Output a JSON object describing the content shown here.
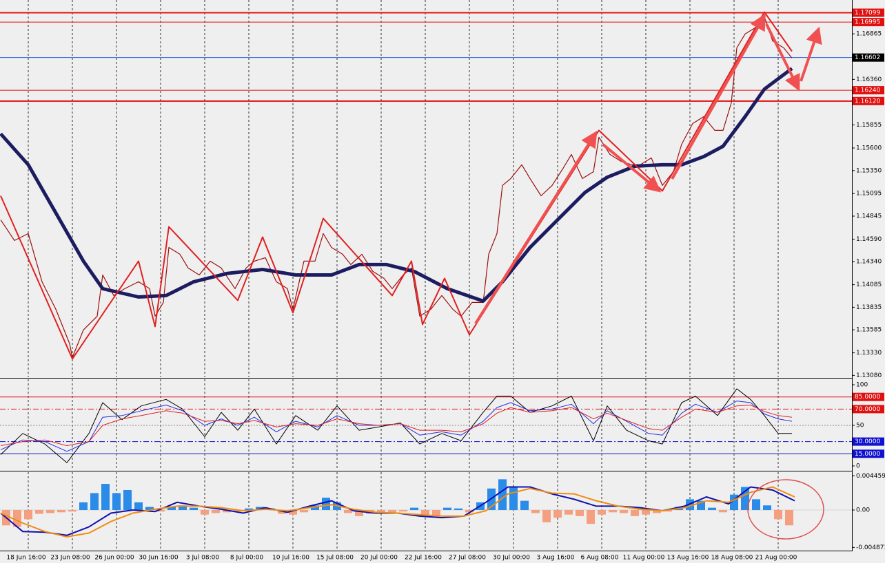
{
  "chart_data": [
    {
      "type": "line",
      "xlim": [
        -10.25,
        298.75
      ],
      "ylim": [
        1.1306,
        1.1724
      ],
      "grid": true,
      "yticks": [
        1.16865,
        {
          "value": 1.1636,
          "label": "1.16360"
        },
        1.15855,
        {
          "value": 1.156,
          "label": "1.15600"
        },
        {
          "value": 1.1535,
          "label": "1.15350"
        },
        1.15095,
        1.14845,
        {
          "value": 1.1459,
          "label": "1.14590"
        },
        {
          "value": 1.1434,
          "label": "1.14340"
        },
        1.14085,
        1.13835,
        1.13585,
        {
          "value": 1.1333,
          "label": "1.13330"
        },
        {
          "value": 1.1308,
          "label": "1.13080"
        }
      ],
      "levels": [
        {
          "value": 1.17099,
          "label": "1.17099",
          "color": "#e01010",
          "width": 2,
          "box": "#e01010"
        },
        {
          "value": 1.16995,
          "label": "1.16995",
          "color": "#e01010",
          "width": 1,
          "box": "#e01010"
        },
        {
          "value": 1.16602,
          "label": "1.16602",
          "color": "#3060e0",
          "width": 1,
          "box": "#000000"
        },
        {
          "value": 1.1624,
          "label": "1.16240",
          "color": "#e01010",
          "width": 1,
          "box": "#e01010"
        },
        {
          "value": 1.1612,
          "label": "1.16120",
          "color": "#e01010",
          "width": 2,
          "box": "#e01010"
        }
      ],
      "series": [
        {
          "color": "#9a1010",
          "width": 1.2,
          "x": [
            -10,
            -5,
            0,
            5,
            10,
            15,
            16,
            20,
            25,
            27,
            31,
            35,
            40,
            44,
            46,
            49,
            51,
            55,
            58,
            62,
            66,
            70,
            75,
            79,
            82,
            86,
            90,
            94,
            96,
            100,
            104,
            107,
            110,
            114,
            117,
            121,
            125,
            129,
            132,
            136,
            139,
            142,
            146,
            150,
            154,
            157,
            161,
            165,
            167,
            170,
            172,
            175,
            179,
            182,
            186,
            190,
            194,
            197,
            201,
            205,
            207,
            211,
            215,
            219,
            222,
            226,
            230,
            234,
            237,
            241,
            245,
            249,
            252,
            255,
            257,
            260,
            264,
            267,
            270,
            274,
            277
          ],
          "values": [
            1.14804,
            1.14575,
            1.14651,
            1.14117,
            1.13812,
            1.13431,
            1.13278,
            1.13583,
            1.13736,
            1.14193,
            1.13965,
            1.14041,
            1.14117,
            1.14041,
            1.13736,
            1.13888,
            1.14498,
            1.14422,
            1.1427,
            1.14193,
            1.14346,
            1.1427,
            1.14041,
            1.1427,
            1.14346,
            1.14384,
            1.14117,
            1.14041,
            1.13812,
            1.14346,
            1.14346,
            1.14651,
            1.14498,
            1.14422,
            1.14308,
            1.14422,
            1.14232,
            1.14155,
            1.14041,
            1.14193,
            1.1427,
            1.13736,
            1.13812,
            1.13965,
            1.13812,
            1.13736,
            1.13888,
            1.13888,
            1.14422,
            1.14651,
            1.15185,
            1.15261,
            1.15414,
            1.15261,
            1.1507,
            1.15185,
            1.15375,
            1.15528,
            1.15261,
            1.15337,
            1.15719,
            1.15528,
            1.15452,
            1.15414,
            1.15414,
            1.1549,
            1.15185,
            1.15337,
            1.15642,
            1.15871,
            1.15947,
            1.15795,
            1.15795,
            1.161,
            1.1671,
            1.16863,
            1.16939,
            1.17053,
            1.16786,
            1.1671,
            1.16596
          ]
        },
        {
          "color": "#1c1c60",
          "width": 5,
          "x": [
            -10,
            0,
            10,
            20,
            27,
            40,
            50,
            60,
            72,
            85,
            97,
            110,
            120,
            130,
            140,
            152,
            165,
            172,
            182,
            192,
            202,
            210,
            220,
            230,
            237,
            245,
            252,
            260,
            267,
            277
          ],
          "values": [
            1.15757,
            1.15414,
            1.1488,
            1.14346,
            1.14041,
            1.13949,
            1.13965,
            1.14117,
            1.14209,
            1.14254,
            1.14193,
            1.14193,
            1.14308,
            1.14308,
            1.14232,
            1.14041,
            1.13904,
            1.14117,
            1.14498,
            1.14804,
            1.15109,
            1.15276,
            1.15398,
            1.15414,
            1.15414,
            1.15505,
            1.15619,
            1.15947,
            1.16252,
            1.16481
          ]
        },
        {
          "color": "#e02020",
          "width": 2,
          "x": [
            -10,
            16,
            40,
            46,
            51,
            76,
            85,
            96,
            107,
            132,
            139,
            143,
            151,
            160,
            207,
            230,
            267,
            277
          ],
          "values": [
            1.1507,
            1.13263,
            1.14346,
            1.13621,
            1.14727,
            1.13911,
            1.14613,
            1.13774,
            1.14819,
            1.13965,
            1.14346,
            1.13644,
            1.14155,
            1.1353,
            1.15795,
            1.15124,
            1.17106,
            1.16672
          ]
        }
      ]
    },
    {
      "type": "line",
      "xlim": [
        -10.25,
        298.75
      ],
      "ylim": [
        -5.1,
        106.8
      ],
      "yticks": [
        0,
        50,
        100
      ],
      "levels": [
        {
          "value": 85,
          "label": "85.0000",
          "color": "#e01010",
          "dash": false
        },
        {
          "value": 70,
          "label": "70.0000",
          "color": "#e01010",
          "dash": true
        },
        {
          "value": 30,
          "label": "30.0000",
          "color": "#1010d0",
          "dash": true
        },
        {
          "value": 15,
          "label": "15.0000",
          "color": "#1010d0",
          "dash": false
        }
      ],
      "x": [
        -10,
        -2,
        6,
        14,
        22,
        27,
        34,
        41,
        50,
        56,
        64,
        70,
        76,
        82,
        90,
        97,
        105,
        112,
        120,
        127,
        135,
        142,
        150,
        157,
        165,
        170,
        175,
        182,
        190,
        197,
        205,
        210,
        217,
        225,
        230,
        237,
        242,
        250,
        257,
        262,
        267,
        272,
        277
      ],
      "series": [
        {
          "color": "#000000",
          "values": [
            14,
            40,
            27,
            4,
            40,
            78,
            57,
            74,
            82,
            70,
            36,
            66,
            44,
            70,
            27,
            62,
            44,
            74,
            44,
            48,
            53,
            27,
            40,
            31,
            66,
            86,
            86,
            66,
            74,
            86,
            31,
            74,
            44,
            31,
            27,
            78,
            86,
            62,
            95,
            82,
            62,
            40,
            40
          ]
        },
        {
          "color": "#2030e0",
          "values": [
            20,
            32,
            30,
            18,
            30,
            60,
            62,
            68,
            75,
            68,
            50,
            58,
            50,
            60,
            42,
            55,
            48,
            62,
            50,
            50,
            52,
            38,
            42,
            38,
            55,
            72,
            78,
            68,
            70,
            76,
            52,
            68,
            55,
            40,
            38,
            65,
            76,
            66,
            80,
            78,
            64,
            58,
            55
          ]
        },
        {
          "color": "#e02020",
          "values": [
            25,
            30,
            32,
            25,
            30,
            50,
            58,
            62,
            68,
            65,
            55,
            56,
            52,
            56,
            48,
            52,
            50,
            58,
            52,
            50,
            52,
            44,
            44,
            42,
            52,
            65,
            72,
            66,
            68,
            72,
            58,
            65,
            56,
            46,
            44,
            60,
            70,
            66,
            74,
            75,
            67,
            62,
            60
          ]
        }
      ]
    },
    {
      "type": "bar",
      "xlim": [
        -10.25,
        298.75
      ],
      "ylim": [
        -0.00529,
        0.00493
      ],
      "yticks": [
        0.0044593,
        {
          "value": 0,
          "label": "0.00"
        },
        -0.004873
      ],
      "xticks": [
        {
          "value": 0,
          "label": "18 Jun 16:00"
        },
        {
          "value": 16,
          "label": "23 Jun 08:00"
        },
        {
          "value": 32,
          "label": "26 Jun 00:00"
        },
        {
          "value": 48,
          "label": "30 Jun 16:00"
        },
        {
          "value": 64,
          "label": "3 Jul 08:00"
        },
        {
          "value": 80,
          "label": "8 Jul 00:00"
        },
        {
          "value": 96,
          "label": "10 Jul 16:00"
        },
        {
          "value": 112,
          "label": "15 Jul 08:00"
        },
        {
          "value": 128,
          "label": "20 Jul 00:00"
        },
        {
          "value": 144,
          "label": "22 Jul 16:00"
        },
        {
          "value": 160,
          "label": "27 Jul 08:00"
        },
        {
          "value": 176,
          "label": "30 Jul 00:00"
        },
        {
          "value": 192,
          "label": "3 Aug 16:00"
        },
        {
          "value": 208,
          "label": "6 Aug 08:00"
        },
        {
          "value": 224,
          "label": "11 Aug 00:00"
        },
        {
          "value": 240,
          "label": "13 Aug 16:00"
        },
        {
          "value": 256,
          "label": "18 Aug 08:00"
        },
        {
          "value": 272,
          "label": "21 Aug 00:00"
        }
      ],
      "up_color": "#2a8be8",
      "down_color": "#f4a080",
      "x": [
        -8,
        -4,
        0,
        4,
        8,
        12,
        16,
        20,
        24,
        28,
        32,
        36,
        40,
        44,
        48,
        52,
        56,
        60,
        64,
        68,
        72,
        76,
        80,
        84,
        88,
        92,
        96,
        100,
        104,
        108,
        112,
        116,
        120,
        124,
        128,
        132,
        136,
        140,
        144,
        148,
        152,
        156,
        160,
        164,
        168,
        172,
        176,
        180,
        184,
        188,
        192,
        196,
        200,
        204,
        208,
        212,
        216,
        220,
        224,
        228,
        232,
        236,
        240,
        244,
        248,
        252,
        256,
        260,
        264,
        268,
        272,
        276
      ],
      "values": [
        -0.002,
        -0.0022,
        -0.0012,
        -0.0005,
        -0.0004,
        -0.0003,
        -0.0002,
        0.001,
        0.0022,
        0.0034,
        0.0022,
        0.0026,
        0.001,
        0.0004,
        -0.0002,
        0.0004,
        0.0006,
        0.0003,
        -0.0006,
        -0.0004,
        -0.0003,
        -0.0002,
        0.0002,
        0.0004,
        0.0002,
        -0.0005,
        -0.0006,
        -0.0003,
        0.0006,
        0.0016,
        0.001,
        -0.0004,
        -0.0008,
        -0.0005,
        -0.0003,
        -0.0004,
        -0.0002,
        0.0003,
        -0.0007,
        -0.0008,
        0.0003,
        0.0002,
        -0.0003,
        0.001,
        0.0028,
        0.004,
        0.003,
        0.0012,
        -0.0004,
        -0.0016,
        -0.001,
        -0.0006,
        -0.0008,
        -0.0018,
        -0.0006,
        -0.0003,
        -0.0004,
        -0.0008,
        -0.0006,
        -0.0004,
        -0.0002,
        0.0004,
        0.0014,
        0.0012,
        0.0003,
        -0.0003,
        0.002,
        0.003,
        0.0014,
        0.0006,
        -0.0012,
        -0.002
      ],
      "lines": [
        {
          "color": "#1010b0",
          "x": [
            -10,
            -2,
            6,
            14,
            22,
            30,
            38,
            46,
            54,
            62,
            70,
            78,
            86,
            94,
            102,
            110,
            118,
            126,
            134,
            142,
            150,
            158,
            166,
            174,
            182,
            190,
            198,
            206,
            214,
            222,
            230,
            238,
            246,
            254,
            262,
            270,
            278
          ],
          "values": [
            -0.0004,
            -0.0028,
            -0.0029,
            -0.0033,
            -0.0022,
            -0.0004,
            0,
            -0.0002,
            0.001,
            0.0005,
            0.0001,
            -0.0004,
            0.0003,
            -0.0003,
            0.0005,
            0.0012,
            -0.0001,
            -0.0004,
            -0.0004,
            -0.0008,
            -0.001,
            -0.0008,
            0.001,
            0.003,
            0.003,
            0.0021,
            0.0014,
            0.0005,
            0.0005,
            0.0003,
            -0.0001,
            0.0005,
            0.0017,
            0.0008,
            0.003,
            0.0026,
            0.0012
          ]
        },
        {
          "color": "#f08c10",
          "x": [
            -10,
            -2,
            6,
            14,
            22,
            30,
            38,
            46,
            54,
            62,
            70,
            78,
            86,
            94,
            102,
            110,
            118,
            126,
            134,
            142,
            150,
            158,
            166,
            174,
            182,
            190,
            198,
            206,
            214,
            222,
            230,
            238,
            246,
            254,
            262,
            270,
            278
          ],
          "values": [
            -0.0004,
            -0.0017,
            -0.0028,
            -0.0035,
            -0.003,
            -0.0015,
            -0.0004,
            0.0001,
            0.0005,
            0.0005,
            0.0003,
            -0.0001,
            0.0001,
            -0.0001,
            0.0003,
            0.0007,
            0.0001,
            -0.0003,
            -0.0004,
            -0.0006,
            -0.0008,
            -0.0008,
            -0.0001,
            0.0021,
            0.0028,
            0.0022,
            0.0021,
            0.0012,
            0.0005,
            0.0001,
            -0.0001,
            0.0003,
            0.0012,
            0.001,
            0.0023,
            0.003,
            0.0017
          ]
        }
      ]
    }
  ]
}
